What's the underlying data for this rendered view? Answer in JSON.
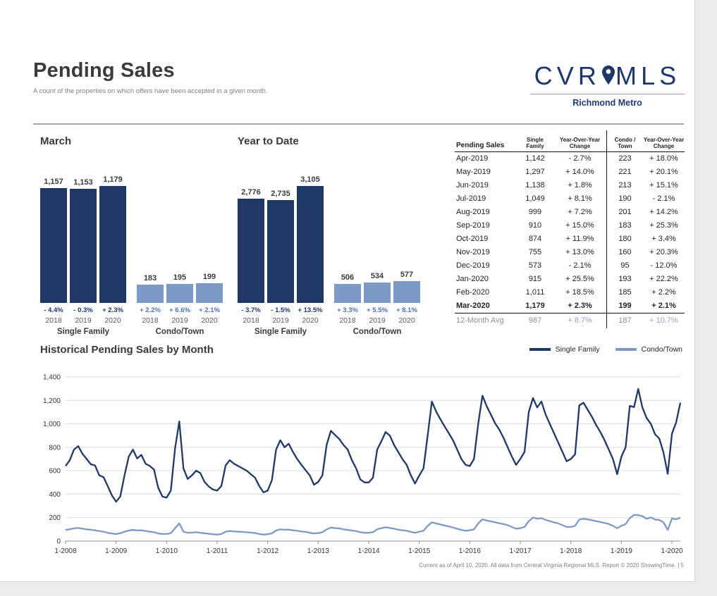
{
  "page": {
    "title": "Pending Sales",
    "subtitle": "A count of the properties on which offers have been accepted in a given month.",
    "footer": "Current as of April 10, 2020. All data from Central Virginia Regional MLS. Report © 2020 ShowingTime.",
    "footer_sep": "|",
    "page_number": "5"
  },
  "logo": {
    "left": "CVR",
    "right": "MLS",
    "region": "Richmond Metro"
  },
  "colors": {
    "dark_blue": "#1f3866",
    "light_blue": "#7e99c4",
    "change_light": "#4f71ad",
    "grid": "#dadada",
    "axis": "#8c8c8c"
  },
  "chart_data": [
    {
      "type": "bar",
      "title": "March",
      "groups": [
        {
          "name": "Single Family",
          "categories": [
            "2018",
            "2019",
            "2020"
          ],
          "values": [
            1157,
            1153,
            1179
          ],
          "labels": [
            "1,157",
            "1,153",
            "1,179"
          ],
          "changes": [
            "- 4.4%",
            "- 0.3%",
            "+ 2.3%"
          ],
          "bar_color": "#1f3866",
          "change_color": "#1f3866"
        },
        {
          "name": "Condo/Town",
          "categories": [
            "2018",
            "2019",
            "2020"
          ],
          "values": [
            183,
            195,
            199
          ],
          "labels": [
            "183",
            "195",
            "199"
          ],
          "changes": [
            "+ 2.2%",
            "+ 6.6%",
            "+ 2.1%"
          ],
          "bar_color": "#7e99c4",
          "change_color": "#4f71ad"
        }
      ]
    },
    {
      "type": "bar",
      "title": "Year to Date",
      "groups": [
        {
          "name": "Single Family",
          "categories": [
            "2018",
            "2019",
            "2020"
          ],
          "values": [
            2776,
            2735,
            3105
          ],
          "labels": [
            "2,776",
            "2,735",
            "3,105"
          ],
          "changes": [
            "- 3.7%",
            "- 1.5%",
            "+ 13.5%"
          ],
          "bar_color": "#1f3866",
          "change_color": "#1f3866"
        },
        {
          "name": "Condo/Town",
          "categories": [
            "2018",
            "2019",
            "2020"
          ],
          "values": [
            506,
            534,
            577
          ],
          "labels": [
            "506",
            "534",
            "577"
          ],
          "changes": [
            "+ 3.3%",
            "+ 5.5%",
            "+ 8.1%"
          ],
          "bar_color": "#7e99c4",
          "change_color": "#4f71ad"
        }
      ]
    },
    {
      "type": "line",
      "title": "Historical Pending Sales by Month",
      "ylim": [
        0,
        1400
      ],
      "y_ticks": [
        "0",
        "200",
        "400",
        "600",
        "800",
        "1,000",
        "1,200",
        "1,400"
      ],
      "x_labels": [
        "1-2008",
        "1-2009",
        "1-2010",
        "1-2011",
        "1-2012",
        "1-2013",
        "1-2014",
        "1-2015",
        "1-2016",
        "1-2017",
        "1-2018",
        "1-2019",
        "1-2020"
      ],
      "n_points": 147,
      "legend_position": "top-right",
      "series": [
        {
          "name": "Single Family",
          "color": "#1f3866",
          "values": [
            640,
            690,
            780,
            810,
            745,
            700,
            655,
            645,
            560,
            545,
            470,
            390,
            335,
            380,
            560,
            720,
            780,
            705,
            735,
            660,
            640,
            610,
            455,
            380,
            370,
            430,
            790,
            1020,
            620,
            530,
            560,
            600,
            580,
            505,
            465,
            440,
            430,
            470,
            645,
            690,
            660,
            640,
            620,
            600,
            570,
            540,
            470,
            415,
            430,
            520,
            780,
            860,
            800,
            830,
            760,
            700,
            650,
            605,
            560,
            480,
            505,
            560,
            820,
            940,
            905,
            870,
            820,
            780,
            690,
            620,
            525,
            500,
            500,
            540,
            780,
            850,
            930,
            900,
            820,
            760,
            700,
            650,
            560,
            490,
            560,
            620,
            900,
            1190,
            1105,
            1040,
            980,
            920,
            860,
            780,
            700,
            650,
            640,
            700,
            1000,
            1240,
            1150,
            1080,
            1005,
            950,
            880,
            800,
            720,
            650,
            700,
            760,
            1100,
            1220,
            1140,
            1190,
            1080,
            1000,
            920,
            840,
            760,
            680,
            700,
            740,
            1157,
            1180,
            1120,
            1060,
            990,
            930,
            860,
            780,
            700,
            570,
            720,
            800,
            1153,
            1142,
            1297,
            1138,
            1049,
            999,
            910,
            874,
            755,
            573,
            915,
            1011,
            1179
          ]
        },
        {
          "name": "Condo/Town",
          "color": "#7e99c4",
          "values": [
            95,
            100,
            108,
            112,
            105,
            100,
            96,
            92,
            86,
            80,
            70,
            64,
            60,
            66,
            80,
            90,
            95,
            90,
            92,
            86,
            80,
            76,
            64,
            60,
            60,
            68,
            110,
            150,
            80,
            70,
            72,
            76,
            70,
            66,
            62,
            58,
            55,
            60,
            80,
            86,
            82,
            80,
            78,
            75,
            72,
            68,
            60,
            55,
            58,
            66,
            90,
            100,
            96,
            98,
            92,
            88,
            82,
            78,
            70,
            65,
            68,
            75,
            100,
            115,
            110,
            108,
            100,
            95,
            90,
            85,
            76,
            70,
            70,
            76,
            100,
            110,
            118,
            112,
            105,
            98,
            92,
            88,
            78,
            70,
            80,
            88,
            130,
            160,
            150,
            142,
            132,
            125,
            115,
            105,
            95,
            88,
            92,
            100,
            150,
            185,
            175,
            168,
            160,
            152,
            145,
            135,
            120,
            105,
            110,
            120,
            170,
            200,
            190,
            195,
            180,
            170,
            160,
            150,
            135,
            120,
            120,
            130,
            183,
            190,
            185,
            178,
            170,
            162,
            155,
            145,
            130,
            110,
            130,
            145,
            195,
            223,
            221,
            213,
            190,
            201,
            183,
            180,
            160,
            95,
            193,
            185,
            199
          ]
        }
      ]
    }
  ],
  "table": {
    "header": [
      {
        "l1": "Pending Sales",
        "l2": ""
      },
      {
        "l1": "Single",
        "l2": "Family"
      },
      {
        "l1": "Year-Over-Year",
        "l2": "Change"
      },
      {
        "l1": "Condo /",
        "l2": "Town"
      },
      {
        "l1": "Year-Over-Year",
        "l2": "Change"
      }
    ],
    "rows": [
      {
        "month": "Apr-2019",
        "sf": "1,142",
        "sf_change": "- 2.7%",
        "condo": "223",
        "condo_change": "+ 18.0%",
        "bold": false
      },
      {
        "month": "May-2019",
        "sf": "1,297",
        "sf_change": "+ 14.0%",
        "condo": "221",
        "condo_change": "+ 20.1%",
        "bold": false
      },
      {
        "month": "Jun-2019",
        "sf": "1,138",
        "sf_change": "+ 1.8%",
        "condo": "213",
        "condo_change": "+ 15.1%",
        "bold": false
      },
      {
        "month": "Jul-2019",
        "sf": "1,049",
        "sf_change": "+ 8.1%",
        "condo": "190",
        "condo_change": "- 2.1%",
        "bold": false
      },
      {
        "month": "Aug-2019",
        "sf": "999",
        "sf_change": "+ 7.2%",
        "condo": "201",
        "condo_change": "+ 14.2%",
        "bold": false
      },
      {
        "month": "Sep-2019",
        "sf": "910",
        "sf_change": "+ 15.0%",
        "condo": "183",
        "condo_change": "+ 25.3%",
        "bold": false
      },
      {
        "month": "Oct-2019",
        "sf": "874",
        "sf_change": "+ 11.9%",
        "condo": "180",
        "condo_change": "+ 3.4%",
        "bold": false
      },
      {
        "month": "Nov-2019",
        "sf": "755",
        "sf_change": "+ 13.0%",
        "condo": "160",
        "condo_change": "+ 20.3%",
        "bold": false
      },
      {
        "month": "Dec-2019",
        "sf": "573",
        "sf_change": "- 2.1%",
        "condo": "95",
        "condo_change": "- 12.0%",
        "bold": false
      },
      {
        "month": "Jan-2020",
        "sf": "915",
        "sf_change": "+ 25.5%",
        "condo": "193",
        "condo_change": "+ 22.2%",
        "bold": false
      },
      {
        "month": "Feb-2020",
        "sf": "1,011",
        "sf_change": "+ 18.5%",
        "condo": "185",
        "condo_change": "+ 2.2%",
        "bold": false
      },
      {
        "month": "Mar-2020",
        "sf": "1,179",
        "sf_change": "+ 2.3%",
        "condo": "199",
        "condo_change": "+ 2.1%",
        "bold": true
      }
    ],
    "avg_row": {
      "month": "12-Month Avg",
      "sf": "987",
      "sf_change": "+ 8.7%",
      "condo": "187",
      "condo_change": "+ 10.7%"
    }
  }
}
